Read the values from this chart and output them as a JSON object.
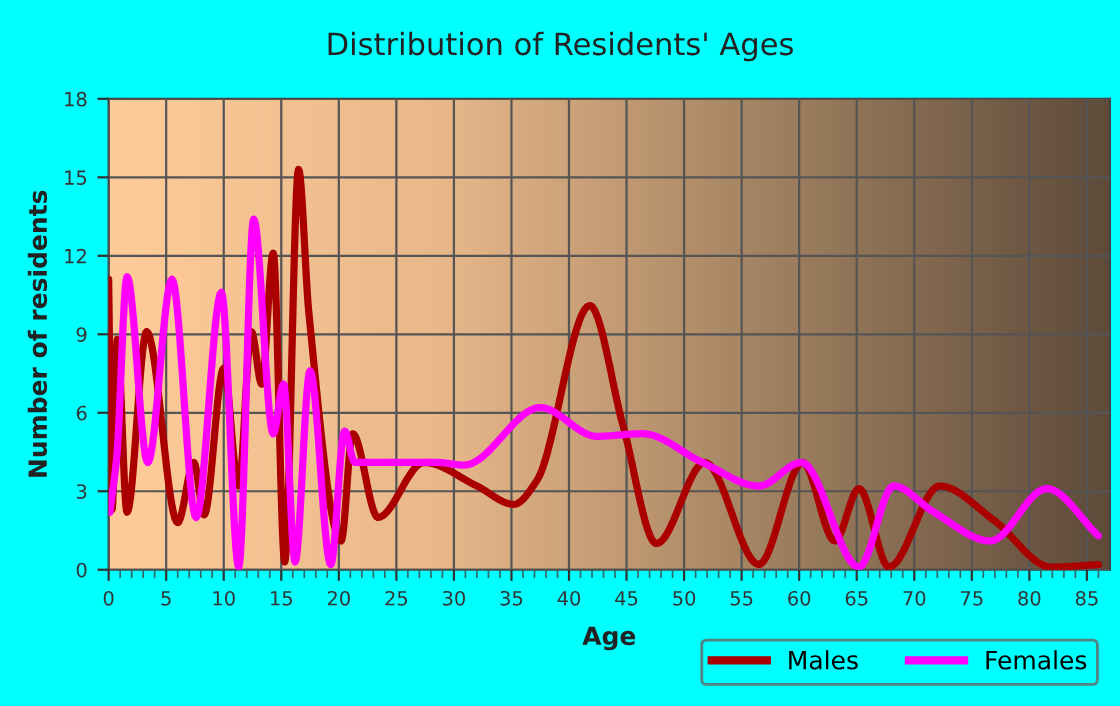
{
  "chart_data": {
    "type": "line",
    "title": "Distribution of Residents' Ages",
    "xlabel": "Age",
    "ylabel": "Number of residents",
    "xlim": [
      0,
      87
    ],
    "xticks": [
      0,
      5,
      10,
      15,
      20,
      25,
      30,
      35,
      40,
      45,
      50,
      55,
      60,
      65,
      70,
      75,
      80,
      85
    ],
    "ylim": [
      0,
      18
    ],
    "yticks": [
      0,
      3,
      6,
      9,
      12,
      15,
      18
    ],
    "grid": true,
    "legend": "bottom",
    "line_style": "solid",
    "marker": "none",
    "series": [
      {
        "name": "Males",
        "color": "#aa0000",
        "x": [
          0,
          0.3,
          0.75,
          1.6,
          3.3,
          6,
          7.4,
          8.3,
          10,
          11.3,
          12.4,
          13.3,
          14.3,
          15.3,
          16.5,
          17.4,
          20.2,
          21.2,
          23.4,
          27.4,
          32,
          35.2,
          37.2,
          41.8,
          44.7,
          47.6,
          51.8,
          56.5,
          60.3,
          63.1,
          65.2,
          67.8,
          72.2,
          76.9,
          81.9,
          86
        ],
        "values": [
          11.1,
          2.3,
          8.8,
          2.2,
          9.1,
          1.8,
          4.1,
          2.1,
          7.7,
          3.2,
          9.1,
          7.1,
          12.1,
          0.3,
          15.3,
          9.8,
          1.1,
          5.2,
          2.0,
          4.1,
          3.2,
          2.5,
          3.4,
          10.1,
          5.5,
          1.0,
          4.1,
          0.2,
          4.1,
          1.1,
          3.1,
          0.1,
          3.2,
          1.9,
          0.1,
          0.2
        ]
      },
      {
        "name": "Females",
        "color": "#ff00ff",
        "x": [
          0.1,
          0.7,
          1.6,
          3.4,
          5.5,
          7.6,
          9.8,
          11.3,
          12.6,
          14.3,
          15.2,
          16.2,
          17.5,
          19.3,
          20.5,
          21.4,
          28.6,
          30.9,
          37.5,
          42.4,
          46.4,
          51.6,
          56.5,
          60.2,
          65.2,
          68.2,
          71.7,
          76.6,
          81.5,
          86
        ],
        "values": [
          2.2,
          4.3,
          11.2,
          4.1,
          11.1,
          2.0,
          10.6,
          0.1,
          13.4,
          5.2,
          7.1,
          0.3,
          7.6,
          0.2,
          5.3,
          4.1,
          4.1,
          4.0,
          6.2,
          5.1,
          5.2,
          4.1,
          3.2,
          4.1,
          0.1,
          3.2,
          2.2,
          1.1,
          3.1,
          1.3
        ]
      }
    ]
  }
}
